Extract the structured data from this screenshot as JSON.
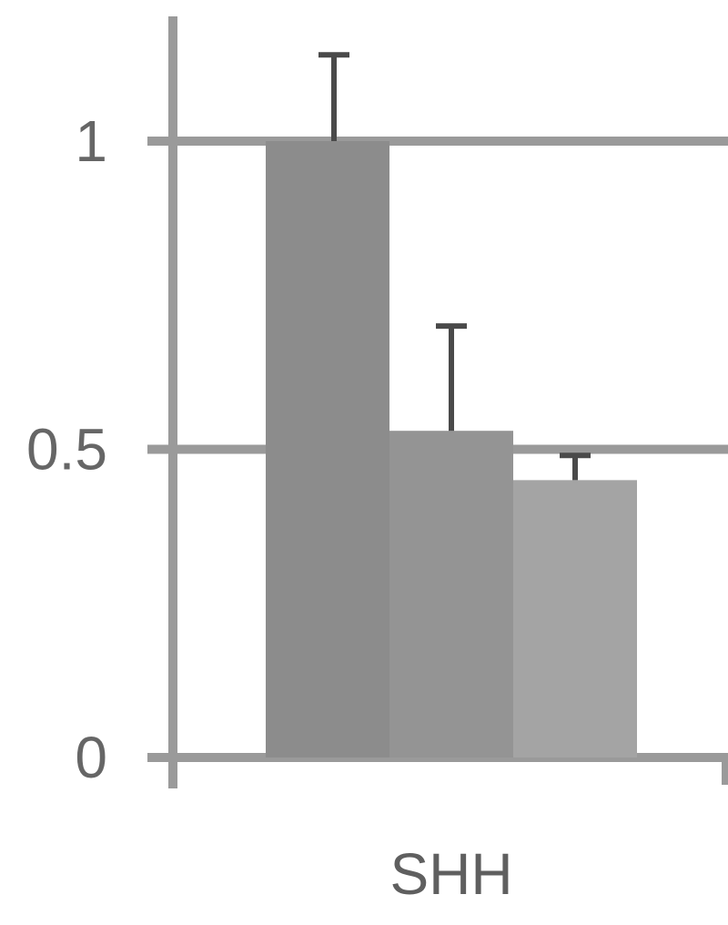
{
  "chart_data": {
    "type": "bar",
    "categories": [
      "SHH"
    ],
    "series": [
      {
        "values": [
          1.0
        ],
        "error": [
          0.14
        ],
        "color": "#8c8c8c"
      },
      {
        "values": [
          0.53
        ],
        "error": [
          0.17
        ],
        "color": "#949494"
      },
      {
        "values": [
          0.45
        ],
        "error": [
          0.04
        ],
        "color": "#a4a4a4"
      }
    ],
    "yticks": [
      "0",
      "0.5",
      "1"
    ],
    "ylim": [
      0,
      1.0
    ],
    "grid": true,
    "grid_color": "#9a9a9a",
    "axis_color": "#9a9a9a",
    "error_bar_color": "#4a4a4a"
  }
}
